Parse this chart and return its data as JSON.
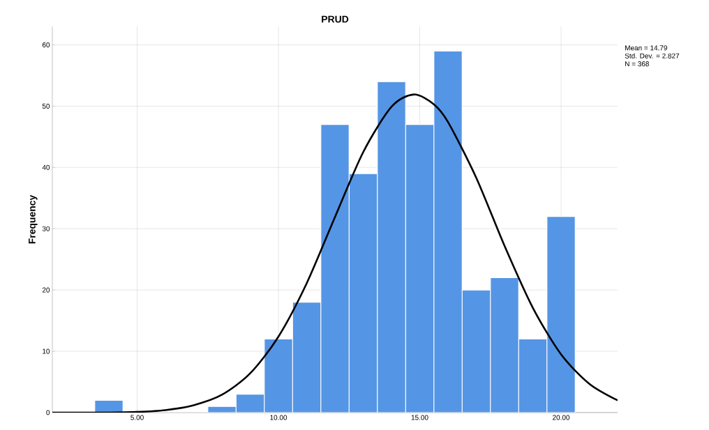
{
  "chart_data": {
    "type": "histogram",
    "title": "PRUD",
    "ylabel": "Frequency",
    "bins": [
      3.5,
      4.5,
      5.5,
      6.5,
      7.5,
      8.5,
      9.5,
      10.5,
      11.5,
      12.5,
      13.5,
      14.5,
      15.5,
      16.5,
      17.5,
      18.5,
      19.5,
      20.5
    ],
    "values": [
      2,
      0,
      0,
      0,
      1,
      3,
      12,
      18,
      47,
      39,
      54,
      47,
      59,
      20,
      22,
      12,
      32
    ],
    "color": "#5595e5",
    "xlim": [
      2,
      22
    ],
    "ylim": [
      0,
      63
    ],
    "xticks": [
      {
        "value": 5,
        "label": "5.00"
      },
      {
        "value": 10,
        "label": "10.00"
      },
      {
        "value": 15,
        "label": "15.00"
      },
      {
        "value": 20,
        "label": "20.00"
      }
    ],
    "yticks": [
      0,
      10,
      20,
      30,
      40,
      50,
      60
    ],
    "grid": true,
    "annotations": [
      "Mean = 14.79",
      "Std. Dev. = 2.827",
      "N = 368"
    ],
    "series": [
      {
        "type": "line",
        "color": "#000000",
        "x": [
          2,
          3,
          4,
          5,
          6,
          7,
          8,
          9,
          10,
          11,
          12,
          13,
          14,
          14.79,
          15.5,
          16,
          17,
          18,
          19,
          20,
          21,
          22
        ],
        "values": [
          0,
          0,
          0,
          0.1,
          0.4,
          1.2,
          2.9,
          6.4,
          12.4,
          21.1,
          31.9,
          42.5,
          49.9,
          51.9,
          50.3,
          47.4,
          38.3,
          27.2,
          17.1,
          9.5,
          4.7,
          2.0
        ]
      }
    ]
  }
}
